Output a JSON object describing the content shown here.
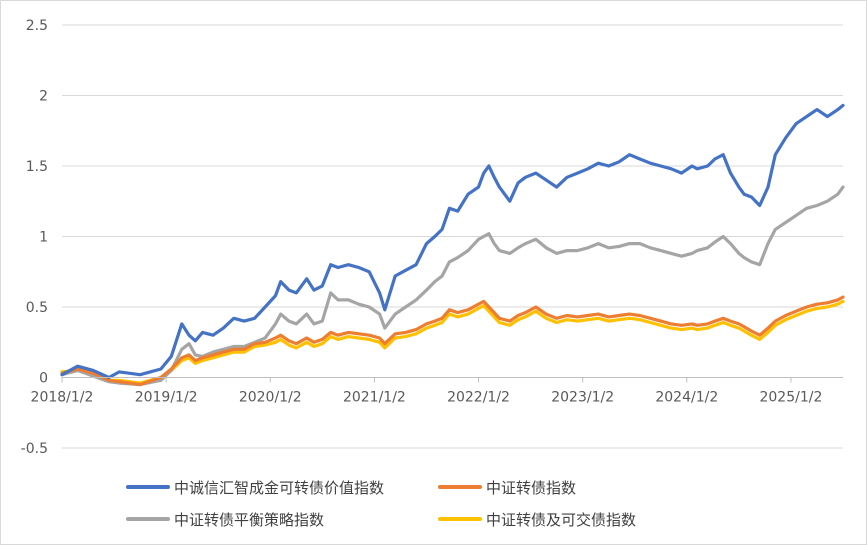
{
  "chart_data": {
    "type": "line",
    "title": "",
    "xlabel": "",
    "ylabel": "",
    "ylim": [
      -0.5,
      2.5
    ],
    "yticks": [
      "2.5",
      "2",
      "1.5",
      "1",
      "0.5",
      "0",
      "-0.5"
    ],
    "yticks_values": [
      2.5,
      2,
      1.5,
      1,
      0.5,
      0,
      -0.5
    ],
    "xticks": [
      "2018/1/2",
      "2019/1/2",
      "2020/1/2",
      "2021/1/2",
      "2022/1/2",
      "2023/1/2",
      "2024/1/2",
      "2025/1/2"
    ],
    "xticks_values": [
      2018.0,
      2019.0,
      2020.0,
      2021.0,
      2022.0,
      2023.0,
      2024.0,
      2025.0
    ],
    "xlim": [
      2018.0,
      2025.5
    ],
    "grid": "horizontal",
    "legend_position": "bottom",
    "series": [
      {
        "name": "中诚信汇智成金可转债价值指数",
        "color": "#4472C4",
        "x": [
          2018.0,
          2018.15,
          2018.3,
          2018.45,
          2018.55,
          2018.75,
          2018.95,
          2019.05,
          2019.15,
          2019.22,
          2019.28,
          2019.35,
          2019.45,
          2019.55,
          2019.65,
          2019.75,
          2019.85,
          2019.95,
          2020.05,
          2020.1,
          2020.18,
          2020.25,
          2020.35,
          2020.42,
          2020.5,
          2020.58,
          2020.65,
          2020.75,
          2020.85,
          2020.95,
          2021.05,
          2021.1,
          2021.2,
          2021.3,
          2021.4,
          2021.5,
          2021.58,
          2021.65,
          2021.72,
          2021.8,
          2021.9,
          2022.0,
          2022.05,
          2022.1,
          2022.15,
          2022.2,
          2022.3,
          2022.38,
          2022.45,
          2022.55,
          2022.65,
          2022.75,
          2022.85,
          2022.95,
          2023.05,
          2023.15,
          2023.25,
          2023.35,
          2023.45,
          2023.55,
          2023.65,
          2023.75,
          2023.85,
          2023.95,
          2024.05,
          2024.1,
          2024.2,
          2024.27,
          2024.35,
          2024.42,
          2024.5,
          2024.55,
          2024.62,
          2024.7,
          2024.78,
          2024.85,
          2024.95,
          2025.05,
          2025.15,
          2025.25,
          2025.35,
          2025.45,
          2025.5
        ],
        "values": [
          0.02,
          0.08,
          0.05,
          0.0,
          0.04,
          0.02,
          0.06,
          0.15,
          0.38,
          0.3,
          0.26,
          0.32,
          0.3,
          0.35,
          0.42,
          0.4,
          0.42,
          0.5,
          0.58,
          0.68,
          0.62,
          0.6,
          0.7,
          0.62,
          0.65,
          0.8,
          0.78,
          0.8,
          0.78,
          0.75,
          0.6,
          0.48,
          0.72,
          0.76,
          0.8,
          0.95,
          1.0,
          1.05,
          1.2,
          1.18,
          1.3,
          1.35,
          1.45,
          1.5,
          1.42,
          1.35,
          1.25,
          1.38,
          1.42,
          1.45,
          1.4,
          1.35,
          1.42,
          1.45,
          1.48,
          1.52,
          1.5,
          1.53,
          1.58,
          1.55,
          1.52,
          1.5,
          1.48,
          1.45,
          1.5,
          1.48,
          1.5,
          1.55,
          1.58,
          1.45,
          1.35,
          1.3,
          1.28,
          1.22,
          1.35,
          1.58,
          1.7,
          1.8,
          1.85,
          1.9,
          1.85,
          1.9,
          1.93
        ]
      },
      {
        "name": "中证转债指数",
        "color": "#ED7D31",
        "x": [
          2018.0,
          2018.15,
          2018.3,
          2018.45,
          2018.55,
          2018.75,
          2018.95,
          2019.05,
          2019.15,
          2019.22,
          2019.28,
          2019.35,
          2019.45,
          2019.55,
          2019.65,
          2019.75,
          2019.85,
          2019.95,
          2020.05,
          2020.1,
          2020.18,
          2020.25,
          2020.35,
          2020.42,
          2020.5,
          2020.58,
          2020.65,
          2020.75,
          2020.85,
          2020.95,
          2021.05,
          2021.1,
          2021.2,
          2021.3,
          2021.4,
          2021.5,
          2021.58,
          2021.65,
          2021.72,
          2021.8,
          2021.9,
          2022.0,
          2022.05,
          2022.1,
          2022.15,
          2022.2,
          2022.3,
          2022.38,
          2022.45,
          2022.55,
          2022.65,
          2022.75,
          2022.85,
          2022.95,
          2023.05,
          2023.15,
          2023.25,
          2023.35,
          2023.45,
          2023.55,
          2023.65,
          2023.75,
          2023.85,
          2023.95,
          2024.05,
          2024.1,
          2024.2,
          2024.27,
          2024.35,
          2024.42,
          2024.5,
          2024.55,
          2024.62,
          2024.7,
          2024.78,
          2024.85,
          2024.95,
          2025.05,
          2025.15,
          2025.25,
          2025.35,
          2025.45,
          2025.5
        ],
        "values": [
          0.03,
          0.06,
          0.03,
          -0.02,
          -0.03,
          -0.05,
          0.0,
          0.06,
          0.14,
          0.16,
          0.12,
          0.14,
          0.16,
          0.18,
          0.2,
          0.2,
          0.24,
          0.25,
          0.28,
          0.3,
          0.26,
          0.24,
          0.28,
          0.25,
          0.27,
          0.32,
          0.3,
          0.32,
          0.31,
          0.3,
          0.28,
          0.24,
          0.31,
          0.32,
          0.34,
          0.38,
          0.4,
          0.42,
          0.48,
          0.46,
          0.48,
          0.52,
          0.54,
          0.5,
          0.46,
          0.42,
          0.4,
          0.44,
          0.46,
          0.5,
          0.45,
          0.42,
          0.44,
          0.43,
          0.44,
          0.45,
          0.43,
          0.44,
          0.45,
          0.44,
          0.42,
          0.4,
          0.38,
          0.37,
          0.38,
          0.37,
          0.38,
          0.4,
          0.42,
          0.4,
          0.38,
          0.36,
          0.33,
          0.3,
          0.35,
          0.4,
          0.44,
          0.47,
          0.5,
          0.52,
          0.53,
          0.55,
          0.57
        ]
      },
      {
        "name": "中证转债平衡策略指数",
        "color": "#A5A5A5",
        "x": [
          2018.0,
          2018.15,
          2018.3,
          2018.45,
          2018.55,
          2018.75,
          2018.95,
          2019.05,
          2019.15,
          2019.22,
          2019.28,
          2019.35,
          2019.45,
          2019.55,
          2019.65,
          2019.75,
          2019.85,
          2019.95,
          2020.05,
          2020.1,
          2020.18,
          2020.25,
          2020.35,
          2020.42,
          2020.5,
          2020.58,
          2020.65,
          2020.75,
          2020.85,
          2020.95,
          2021.05,
          2021.1,
          2021.2,
          2021.3,
          2021.4,
          2021.5,
          2021.58,
          2021.65,
          2021.72,
          2021.8,
          2021.9,
          2022.0,
          2022.05,
          2022.1,
          2022.15,
          2022.2,
          2022.3,
          2022.38,
          2022.45,
          2022.55,
          2022.65,
          2022.75,
          2022.85,
          2022.95,
          2023.05,
          2023.15,
          2023.25,
          2023.35,
          2023.45,
          2023.55,
          2023.65,
          2023.75,
          2023.85,
          2023.95,
          2024.05,
          2024.1,
          2024.2,
          2024.27,
          2024.35,
          2024.42,
          2024.5,
          2024.55,
          2024.62,
          2024.7,
          2024.78,
          2024.85,
          2024.95,
          2025.05,
          2025.15,
          2025.25,
          2025.35,
          2025.45,
          2025.5
        ],
        "values": [
          0.02,
          0.05,
          0.01,
          -0.03,
          -0.04,
          -0.05,
          -0.02,
          0.05,
          0.2,
          0.24,
          0.16,
          0.15,
          0.18,
          0.2,
          0.22,
          0.22,
          0.25,
          0.28,
          0.38,
          0.45,
          0.4,
          0.38,
          0.45,
          0.38,
          0.4,
          0.6,
          0.55,
          0.55,
          0.52,
          0.5,
          0.45,
          0.35,
          0.45,
          0.5,
          0.55,
          0.62,
          0.68,
          0.72,
          0.82,
          0.85,
          0.9,
          0.98,
          1.0,
          1.02,
          0.95,
          0.9,
          0.88,
          0.92,
          0.95,
          0.98,
          0.92,
          0.88,
          0.9,
          0.9,
          0.92,
          0.95,
          0.92,
          0.93,
          0.95,
          0.95,
          0.92,
          0.9,
          0.88,
          0.86,
          0.88,
          0.9,
          0.92,
          0.96,
          1.0,
          0.95,
          0.88,
          0.85,
          0.82,
          0.8,
          0.95,
          1.05,
          1.1,
          1.15,
          1.2,
          1.22,
          1.25,
          1.3,
          1.35
        ]
      },
      {
        "name": "中证转债及可交债指数",
        "color": "#FFC000",
        "x": [
          2018.0,
          2018.15,
          2018.3,
          2018.45,
          2018.55,
          2018.75,
          2018.95,
          2019.05,
          2019.15,
          2019.22,
          2019.28,
          2019.35,
          2019.45,
          2019.55,
          2019.65,
          2019.75,
          2019.85,
          2019.95,
          2020.05,
          2020.1,
          2020.18,
          2020.25,
          2020.35,
          2020.42,
          2020.5,
          2020.58,
          2020.65,
          2020.75,
          2020.85,
          2020.95,
          2021.05,
          2021.1,
          2021.2,
          2021.3,
          2021.4,
          2021.5,
          2021.58,
          2021.65,
          2021.72,
          2021.8,
          2021.9,
          2022.0,
          2022.05,
          2022.1,
          2022.15,
          2022.2,
          2022.3,
          2022.38,
          2022.45,
          2022.55,
          2022.65,
          2022.75,
          2022.85,
          2022.95,
          2023.05,
          2023.15,
          2023.25,
          2023.35,
          2023.45,
          2023.55,
          2023.65,
          2023.75,
          2023.85,
          2023.95,
          2024.05,
          2024.1,
          2024.2,
          2024.27,
          2024.35,
          2024.42,
          2024.5,
          2024.55,
          2024.62,
          2024.7,
          2024.78,
          2024.85,
          2024.95,
          2025.05,
          2025.15,
          2025.25,
          2025.35,
          2025.45,
          2025.5
        ],
        "values": [
          0.04,
          0.05,
          0.02,
          -0.02,
          -0.02,
          -0.04,
          0.0,
          0.05,
          0.12,
          0.14,
          0.1,
          0.12,
          0.14,
          0.16,
          0.18,
          0.18,
          0.22,
          0.23,
          0.25,
          0.27,
          0.23,
          0.21,
          0.25,
          0.22,
          0.24,
          0.29,
          0.27,
          0.29,
          0.28,
          0.27,
          0.25,
          0.21,
          0.28,
          0.29,
          0.31,
          0.35,
          0.37,
          0.39,
          0.45,
          0.43,
          0.45,
          0.49,
          0.51,
          0.47,
          0.43,
          0.39,
          0.37,
          0.41,
          0.43,
          0.47,
          0.42,
          0.39,
          0.41,
          0.4,
          0.41,
          0.42,
          0.4,
          0.41,
          0.42,
          0.41,
          0.39,
          0.37,
          0.35,
          0.34,
          0.35,
          0.34,
          0.35,
          0.37,
          0.39,
          0.37,
          0.35,
          0.33,
          0.3,
          0.27,
          0.32,
          0.37,
          0.41,
          0.44,
          0.47,
          0.49,
          0.5,
          0.52,
          0.54
        ]
      }
    ]
  }
}
